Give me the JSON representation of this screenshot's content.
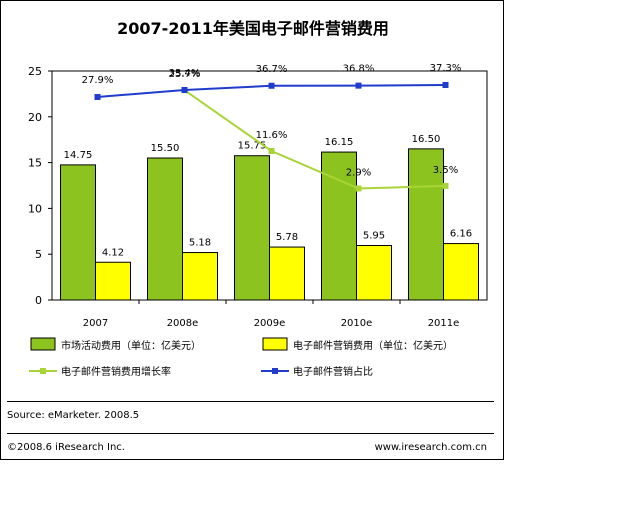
{
  "chart_data": {
    "type": "bar",
    "title": "2007-2011年美国电子邮件营销费用",
    "categories": [
      "2007",
      "2008e",
      "2009e",
      "2010e",
      "2011e"
    ],
    "ylim": [
      0,
      25
    ],
    "yticks": [
      0,
      5,
      10,
      15,
      20,
      25
    ],
    "series": [
      {
        "name": "市场活动费用（单位：亿美元）",
        "kind": "bar",
        "color": "#8dc31f",
        "values": [
          14.75,
          15.5,
          15.75,
          16.15,
          16.5
        ],
        "labels": [
          "14.75",
          "15.50",
          "15.75",
          "16.15",
          "16.50"
        ]
      },
      {
        "name": "电子邮件营销费用（单位：亿美元）",
        "kind": "bar",
        "color": "#ffff00",
        "values": [
          4.12,
          5.18,
          5.78,
          5.95,
          6.16
        ],
        "labels": [
          "4.12",
          "5.18",
          "5.78",
          "5.95",
          "6.16"
        ]
      },
      {
        "name": "电子邮件营销费用增长率",
        "kind": "line",
        "color": "#a8d438",
        "values": [
          null,
          25.7,
          11.6,
          2.9,
          3.5
        ],
        "labels": [
          "",
          "25.7%",
          "11.6%",
          "2.9%",
          "3.5%"
        ]
      },
      {
        "name": "电子邮件营销占比",
        "kind": "line",
        "color": "#1f3ccc",
        "values": [
          27.9,
          33.4,
          36.7,
          36.8,
          37.3
        ],
        "labels": [
          "27.9%",
          "33.4%",
          "36.7%",
          "36.8%",
          "37.3%"
        ]
      }
    ],
    "legend": "bottom",
    "grid": false
  },
  "footer": {
    "source": "Source: eMarketer. 2008.5",
    "copyright": "©2008.6 iResearch Inc.",
    "website": "www.iresearch.com.cn"
  }
}
